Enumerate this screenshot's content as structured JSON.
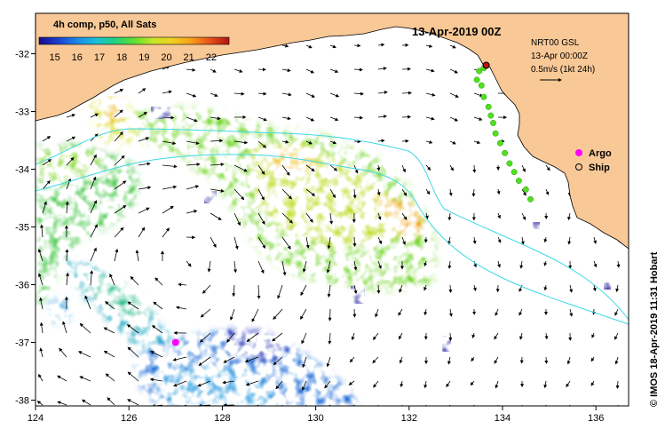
{
  "map": {
    "date_label": "13-Apr-2019 00Z",
    "product_line": "NRT00 GSL",
    "valid_time": "13-Apr 00:00Z",
    "velocity_scale": "0.5m/s (1kt 24h)",
    "credit": "© IMOS 18-Apr-2019 11:31 Hobart",
    "land_color": "#f8c896",
    "ocean_color": "#ffffff",
    "front_color": "#40d8e8",
    "x_axis": {
      "ticks": [
        "124",
        "126",
        "128",
        "130",
        "132",
        "134",
        "136"
      ],
      "range": [
        124,
        136.7
      ]
    },
    "y_axis": {
      "ticks": [
        "-32",
        "-33",
        "-34",
        "-35",
        "-36",
        "-37",
        "-38"
      ],
      "range": [
        -38.1,
        -31.3
      ]
    }
  },
  "colorbar": {
    "title": "4h comp, p50, All Sats",
    "ticks": [
      "15",
      "16",
      "17",
      "18",
      "19",
      "20",
      "21",
      "22"
    ],
    "range": [
      14.3,
      22.8
    ],
    "colors": [
      "#1a0a8c",
      "#1b3fd0",
      "#1e88e8",
      "#18c0d8",
      "#20d080",
      "#60e030",
      "#c8e628",
      "#f0d020",
      "#f8a018",
      "#e85018",
      "#b01410"
    ]
  },
  "legend": {
    "items": [
      {
        "label": "Argo",
        "color": "#ff00ff"
      },
      {
        "label": "Ship",
        "color": "#000000"
      }
    ]
  },
  "observations": {
    "argo_floats": [
      {
        "lon": 127.0,
        "lat": -37.0
      }
    ],
    "ship_track_color": "#50e020",
    "ship_track": [
      {
        "lon": 133.65,
        "lat": -32.2
      },
      {
        "lon": 133.6,
        "lat": -32.25
      },
      {
        "lon": 133.5,
        "lat": -32.3
      },
      {
        "lon": 133.45,
        "lat": -32.45
      },
      {
        "lon": 133.55,
        "lat": -32.55
      },
      {
        "lon": 133.6,
        "lat": -32.75
      },
      {
        "lon": 133.7,
        "lat": -32.92
      },
      {
        "lon": 133.75,
        "lat": -33.07
      },
      {
        "lon": 133.8,
        "lat": -33.2
      },
      {
        "lon": 133.85,
        "lat": -33.38
      },
      {
        "lon": 133.95,
        "lat": -33.55
      },
      {
        "lon": 134.05,
        "lat": -33.72
      },
      {
        "lon": 134.15,
        "lat": -33.9
      },
      {
        "lon": 134.25,
        "lat": -34.05
      },
      {
        "lon": 134.35,
        "lat": -34.2
      },
      {
        "lon": 134.5,
        "lat": -34.35
      },
      {
        "lon": 134.6,
        "lat": -34.52
      }
    ]
  }
}
